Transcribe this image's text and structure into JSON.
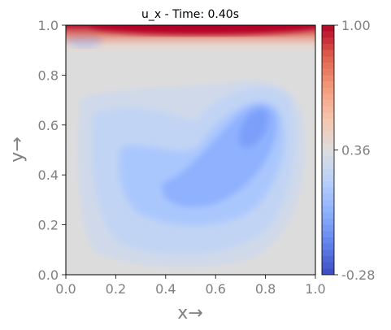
{
  "chart_data": {
    "type": "heatmap",
    "title": "u_x - Time: 0.40s",
    "xlabel": "x→",
    "ylabel": "y→",
    "xlim": [
      0.0,
      1.0
    ],
    "ylim": [
      0.0,
      1.0
    ],
    "x_ticks": [
      "0.0",
      "0.2",
      "0.4",
      "0.6",
      "0.8",
      "1.0"
    ],
    "y_ticks": [
      "0.0",
      "0.2",
      "0.4",
      "0.6",
      "0.8",
      "1.0"
    ],
    "colormap": "coolwarm",
    "colorbar": {
      "min": -0.28,
      "max": 1.0,
      "ticks": [
        "-0.28",
        "0.36",
        "1.00"
      ],
      "position": "right"
    },
    "field_features": [
      {
        "feature": "lid jet",
        "x_range": [
          0.0,
          1.0
        ],
        "y": 1.0,
        "value": 1.0
      },
      {
        "feature": "corner eddy",
        "x": 0.07,
        "y": 0.95,
        "value": -0.08
      },
      {
        "feature": "core minimum",
        "x": 0.75,
        "y": 0.58,
        "value": -0.14
      },
      {
        "feature": "background",
        "value": 0.06
      }
    ],
    "grid": false
  }
}
